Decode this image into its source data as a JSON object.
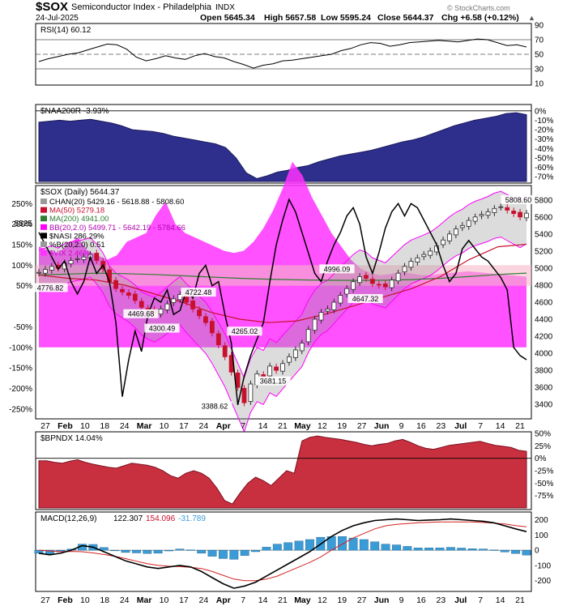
{
  "header": {
    "symbol": "$SOX",
    "name": "Semiconductor Index - Philadelphia",
    "exchange": "INDX",
    "date": "24-Jul-2025",
    "open": "Open 5645.34",
    "high": "High 5657.58",
    "low": "Low 5595.24",
    "close": "Close 5644.37",
    "change": "Chg +6.58 (+0.12%)",
    "change_arrow": "▲",
    "watermark": "© StockCharts.com"
  },
  "colors": {
    "price_up": "#2a2a2a",
    "price_down": "#c8102e",
    "ma50": "#c8102e",
    "ma200": "#2e7d32",
    "bollinger": "#ff00ff",
    "channel_fill": "#9a9a9a",
    "nasi": "#000000",
    "vix_fill": "#ff33ff",
    "naa200r_fill": "#2e2e8c",
    "bpndx_fill": "#c9303f",
    "macd_hist": "#3a9bd6",
    "macd_signal": "#d62020"
  },
  "x_axis": {
    "labels": [
      "27",
      "Feb",
      "10",
      "18",
      "24",
      "Mar",
      "10",
      "17",
      "24",
      "Apr",
      "7",
      "14",
      "21",
      "May",
      "12",
      "19",
      "27",
      "Jun",
      "9",
      "16",
      "23",
      "Jul",
      "7",
      "14",
      "21"
    ],
    "bold": [
      "Feb",
      "Mar",
      "Apr",
      "May",
      "Jun",
      "Jul"
    ]
  },
  "chart_data": [
    {
      "panel": "rsi",
      "type": "line",
      "title": "RSI(14) 60.12",
      "ylim": [
        10,
        90
      ],
      "ticks": [
        "90",
        "70",
        "50",
        "30",
        "10"
      ],
      "levels": [
        70,
        50,
        30
      ],
      "values": [
        40,
        44,
        47,
        50,
        52,
        56,
        60,
        64,
        63,
        57,
        46,
        41,
        44,
        48,
        45,
        43,
        48,
        51,
        47,
        45,
        40,
        36,
        31,
        35,
        37,
        41,
        42,
        44,
        46,
        48,
        50,
        55,
        58,
        63,
        66,
        65,
        61,
        63,
        66,
        67,
        68,
        69,
        68,
        67,
        69,
        71,
        70,
        66,
        62,
        63,
        60
      ]
    },
    {
      "panel": "naa200r",
      "type": "area",
      "title": "$NAA200R -3.93%",
      "ylim": [
        -75,
        5
      ],
      "ticks": [
        "0%",
        "-10%",
        "-20%",
        "-30%",
        "-40%",
        "-50%",
        "-60%",
        "-70%"
      ],
      "values": [
        -12,
        -11,
        -10,
        -11,
        -10,
        -9,
        -11,
        -13,
        -16,
        -20,
        -21,
        -22,
        -24,
        -27,
        -29,
        -31,
        -33,
        -35,
        -39,
        -50,
        -66,
        -72,
        -69,
        -65,
        -63,
        -60,
        -58,
        -54,
        -51,
        -48,
        -46,
        -44,
        -42,
        -39,
        -36,
        -33,
        -31,
        -28,
        -24,
        -20,
        -16,
        -13,
        -10,
        -8,
        -6,
        -3,
        -2,
        -4
      ]
    },
    {
      "panel": "price",
      "type": "candlestick",
      "title": "$SOX (Daily) 5644.37",
      "legend": [
        "CHAN(20) 5429.16 - 5618.88 - 5808.60",
        "MA(50) 5279.18",
        "MA(200) 4941.00",
        "BB(20,2.0) 5499.71 - 5642.19 - 5784.66",
        "$NASI 286.29%",
        "%B(20,2.0) 0.51",
        "$VIX 2.46%"
      ],
      "ylim": [
        3250,
        5950
      ],
      "right_ticks": [
        "5800",
        "5600",
        "5400",
        "5200",
        "5000",
        "4800",
        "4600",
        "4400",
        "4200",
        "4000",
        "3800",
        "3600",
        "3400"
      ],
      "left_ticks": [
        "250%",
        "200%",
        "150%",
        "100%",
        "50%",
        "-50%",
        "-100%",
        "-150%",
        "-200%",
        "-250%"
      ],
      "annotations": [
        "5808.60",
        "4996.09",
        "4776.82",
        "4722.48",
        "4647.32",
        "4469.68",
        "4300.49",
        "4265.02",
        "3681.15",
        "3388.62"
      ],
      "price_label": "5525",
      "close": [
        4950,
        4985,
        5020,
        5000,
        5060,
        5090,
        5110,
        5130,
        5160,
        5090,
        4990,
        4840,
        4760,
        4720,
        4680,
        4620,
        4540,
        4500,
        4470,
        4520,
        4580,
        4640,
        4690,
        4600,
        4520,
        4440,
        4360,
        4240,
        4100,
        3960,
        3780,
        3600,
        3420,
        3640,
        3760,
        3720,
        3850,
        3800,
        3880,
        3960,
        4040,
        4120,
        4280,
        4400,
        4480,
        4520,
        4600,
        4680,
        4760,
        4840,
        4900,
        4880,
        4820,
        4800,
        4780,
        4860,
        4940,
        5020,
        5080,
        5120,
        5160,
        5200,
        5260,
        5330,
        5400,
        5460,
        5500,
        5560,
        5600,
        5630,
        5660,
        5700,
        5720,
        5680,
        5640,
        5600,
        5644
      ],
      "ma50": [
        4920,
        4880,
        4860,
        4800,
        4700,
        4600,
        4480,
        4400,
        4360,
        4380,
        4460,
        4560,
        4660,
        4760,
        4900,
        5100,
        5250,
        5280
      ],
      "ma200": [
        4920,
        4930,
        4940,
        4935,
        4925,
        4910,
        4895,
        4880,
        4870,
        4862,
        4858,
        4856,
        4858,
        4865,
        4880,
        4900,
        4925,
        4941
      ],
      "nasi": [
        180,
        150,
        120,
        90,
        110,
        60,
        30,
        60,
        120,
        80,
        100,
        60,
        -40,
        -220,
        -130,
        -60,
        -110,
        -20,
        20,
        10,
        40,
        -20,
        -10,
        40,
        20,
        80,
        100,
        50,
        60,
        -20,
        -90,
        -240,
        -170,
        -120,
        -80,
        -40,
        60,
        150,
        210,
        260,
        230,
        180,
        130,
        80,
        60,
        110,
        150,
        180,
        220,
        240,
        200,
        120,
        80,
        130,
        190,
        230,
        250,
        220,
        250,
        240,
        210,
        180,
        150,
        100,
        60,
        80,
        140,
        160,
        140,
        120,
        110,
        90,
        70,
        40,
        -100,
        -120,
        -130
      ],
      "vix": [
        70,
        60,
        55,
        75,
        90,
        60,
        50,
        40,
        50,
        80,
        90,
        100,
        140,
        170,
        120,
        100,
        90,
        80,
        70,
        60,
        55,
        60,
        80,
        110,
        150,
        200,
        260,
        230,
        180,
        140,
        100,
        70,
        40,
        20,
        10,
        5,
        8,
        12,
        10,
        6,
        5,
        8,
        10,
        12,
        14,
        12,
        10,
        8,
        6,
        4,
        2
      ]
    },
    {
      "panel": "bpndx",
      "type": "area",
      "title": "$BPNDX 14.04%",
      "ylim": [
        -100,
        50
      ],
      "ticks": [
        "50%",
        "25%",
        "0%",
        "-25%",
        "-50%",
        "-75%"
      ],
      "values": [
        -5,
        -5,
        -8,
        -10,
        -6,
        -3,
        -8,
        -12,
        -15,
        -18,
        -20,
        -15,
        -10,
        -12,
        -14,
        -18,
        -25,
        -35,
        -40,
        -30,
        -25,
        -30,
        -40,
        -60,
        -85,
        -92,
        -70,
        -50,
        -38,
        -45,
        -55,
        -40,
        -25,
        -30,
        35,
        42,
        45,
        42,
        40,
        38,
        35,
        32,
        28,
        25,
        28,
        30,
        35,
        38,
        32,
        25,
        20,
        18,
        22,
        26,
        28,
        30,
        32,
        34,
        30,
        26,
        24,
        22,
        16,
        14
      ]
    },
    {
      "panel": "macd",
      "type": "line",
      "title": "MACD(12,26,9)",
      "legend": [
        "122.307",
        "154.096",
        "-31.789"
      ],
      "ylim": [
        -260,
        240
      ],
      "ticks": [
        "200",
        "100",
        "0",
        "-100",
        "-200"
      ],
      "macd": [
        -20,
        -30,
        -20,
        0,
        30,
        20,
        -10,
        -40,
        -70,
        -90,
        -110,
        -120,
        -110,
        -100,
        -110,
        -140,
        -180,
        -220,
        -250,
        -235,
        -210,
        -170,
        -130,
        -90,
        -50,
        -10,
        40,
        90,
        130,
        160,
        180,
        195,
        200,
        205,
        200,
        195,
        198,
        200,
        205,
        200,
        195,
        190,
        180,
        160,
        140,
        122
      ],
      "signal": [
        0,
        -5,
        -10,
        -8,
        -10,
        -18,
        -28,
        -40,
        -55,
        -72,
        -88,
        -100,
        -105,
        -108,
        -112,
        -120,
        -140,
        -165,
        -190,
        -200,
        -200,
        -190,
        -170,
        -140,
        -110,
        -80,
        -45,
        0,
        40,
        80,
        110,
        140,
        160,
        170,
        175,
        180,
        183,
        185,
        186,
        186,
        185,
        182,
        178,
        172,
        162,
        154
      ],
      "hist": [
        -20,
        -25,
        -10,
        8,
        40,
        38,
        18,
        0,
        -15,
        -18,
        -22,
        -20,
        -5,
        8,
        2,
        -20,
        -40,
        -55,
        -60,
        -35,
        -10,
        20,
        40,
        50,
        60,
        70,
        85,
        90,
        90,
        80,
        70,
        55,
        40,
        35,
        25,
        15,
        15,
        15,
        19,
        14,
        10,
        8,
        2,
        -12,
        -22,
        -32
      ]
    }
  ]
}
